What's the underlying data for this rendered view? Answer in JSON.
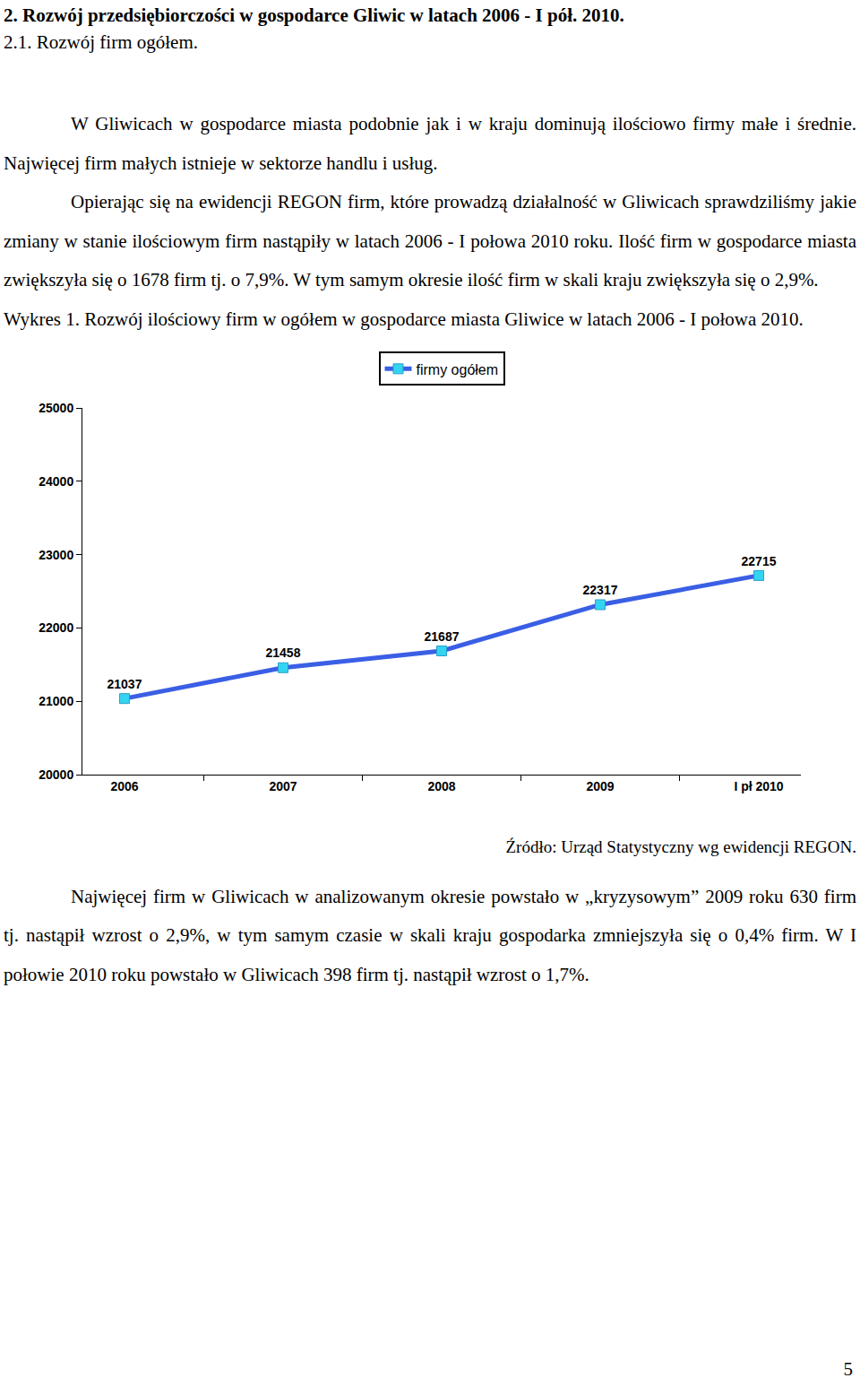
{
  "document": {
    "heading": "2. Rozwój przedsiębiorczości w gospodarce Gliwic w latach 2006 - I pół. 2010.",
    "subheading": "2.1. Rozwój firm ogółem.",
    "paragraphs_before": [
      "W Gliwicach w gospodarce miasta podobnie jak i w kraju dominują ilościowo firmy małe i średnie.  Najwięcej firm małych istnieje w sektorze handlu i usług.",
      "Opierając się na ewidencji REGON firm, które prowadzą działalność w Gliwicach sprawdziliśmy jakie zmiany w stanie ilościowym firm nastąpiły w latach 2006 - I połowa 2010 roku. Ilość firm w gospodarce miasta zwiększyła się o 1678 firm tj. o 7,9%. W tym samym okresie ilość firm w skali kraju zwiększyła się o 2,9%."
    ],
    "figure_caption": "Wykres 1. Rozwój ilościowy firm w  ogółem w gospodarce miasta Gliwice w  latach  2006 - I połowa 2010.",
    "source": "Źródło: Urząd Statystyczny wg ewidencji REGON.",
    "paragraphs_after": [
      "Najwięcej firm w Gliwicach w analizowanym okresie  powstało w „kryzysowym” 2009 roku  630 firm tj. nastąpił wzrost o 2,9%, w tym samym czasie w skali kraju gospodarka zmniejszyła się o 0,4% firm. W I połowie 2010 roku powstało w Gliwicach 398 firm tj. nastąpił wzrost o 1,7%."
    ],
    "page_number": "5"
  },
  "chart_data": {
    "type": "line",
    "categories": [
      "2006",
      "2007",
      "2008",
      "2009",
      "I pł 2010"
    ],
    "series": [
      {
        "name": "firmy ogółem",
        "color": "#3a5fe5",
        "values": [
          21037,
          21458,
          21687,
          22317,
          22715
        ]
      }
    ],
    "marker": "square",
    "ylim": [
      20000,
      25000
    ],
    "yticks": [
      20000,
      21000,
      22000,
      23000,
      24000,
      25000
    ],
    "grid": false,
    "legend": "top",
    "data_labels": true
  }
}
